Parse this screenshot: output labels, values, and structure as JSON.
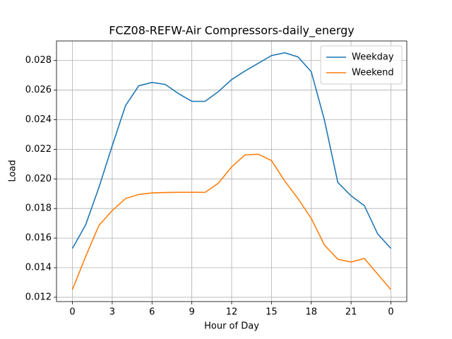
{
  "chart_data": {
    "type": "line",
    "title": "FCZ08-REFW-Air Compressors-daily_energy",
    "x_label": "Hour of Day",
    "y_label": "Load",
    "x": [
      0,
      1,
      2,
      3,
      4,
      5,
      6,
      7,
      8,
      9,
      10,
      11,
      12,
      13,
      14,
      15,
      16,
      17,
      18,
      19,
      20,
      21,
      22,
      23,
      24
    ],
    "series": [
      {
        "name": "Weekday",
        "color": "#1f77b4",
        "values": [
          0.0153,
          0.0169,
          0.01943,
          0.02224,
          0.02495,
          0.02629,
          0.02652,
          0.02638,
          0.02576,
          0.02524,
          0.02524,
          0.0259,
          0.02671,
          0.02729,
          0.02781,
          0.02833,
          0.02852,
          0.02824,
          0.02724,
          0.02395,
          0.01976,
          0.01886,
          0.01819,
          0.01629,
          0.0153
        ]
      },
      {
        "name": "Weekend",
        "color": "#ff7f0e",
        "values": [
          0.01252,
          0.01476,
          0.01686,
          0.01786,
          0.01867,
          0.01895,
          0.01905,
          0.01908,
          0.01909,
          0.01909,
          0.01909,
          0.01971,
          0.02081,
          0.02162,
          0.02167,
          0.02124,
          0.01986,
          0.01867,
          0.01733,
          0.01552,
          0.01457,
          0.01438,
          0.01462,
          0.01357,
          0.01252
        ]
      }
    ],
    "xlim": [
      -1.2,
      25.2
    ],
    "ylim": [
      0.01171,
      0.02932
    ],
    "xticks": [
      0,
      3,
      6,
      9,
      12,
      15,
      18,
      21,
      {
        "value": 24,
        "label": "0"
      }
    ],
    "yticks": [
      {
        "value": 0.012,
        "label": "0.012"
      },
      {
        "value": 0.014,
        "label": "0.014"
      },
      {
        "value": 0.016,
        "label": "0.016"
      },
      {
        "value": 0.018,
        "label": "0.018"
      },
      {
        "value": 0.02,
        "label": "0.020"
      },
      {
        "value": 0.022,
        "label": "0.022"
      },
      {
        "value": 0.024,
        "label": "0.024"
      },
      {
        "value": 0.026,
        "label": "0.026"
      },
      {
        "value": 0.028,
        "label": "0.028"
      }
    ],
    "grid": true,
    "legend": "upper right"
  }
}
